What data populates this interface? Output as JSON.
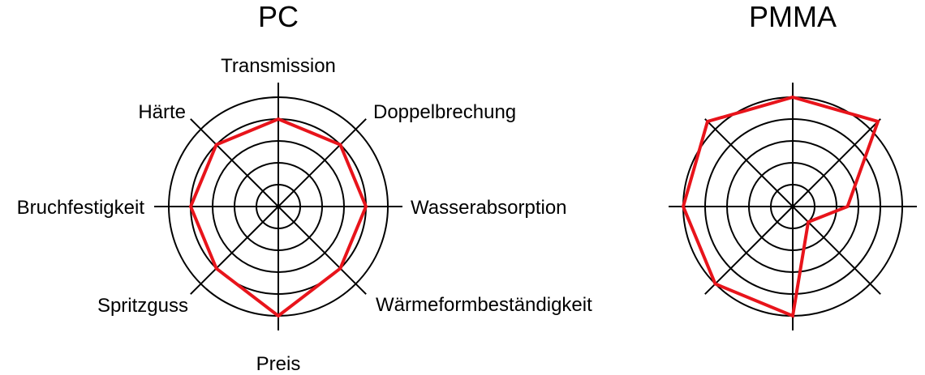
{
  "chart_data": [
    {
      "type": "radar",
      "title": "PC",
      "axes": [
        "Transmission",
        "Doppelbrechung",
        "Wasserabsorption",
        "Wärmeformbeständigkeit",
        "Preis",
        "Spritzguss",
        "Bruchfestigkeit",
        "Härte"
      ],
      "show_axis_labels": true,
      "rings": 5,
      "range": [
        0,
        5
      ],
      "line_color": "#e8141b",
      "values": [
        4,
        4,
        4,
        4,
        5,
        4,
        4,
        4
      ]
    },
    {
      "type": "radar",
      "title": "PMMA",
      "axes": [
        "Transmission",
        "Doppelbrechung",
        "Wasserabsorption",
        "Wärmeformbeständigkeit",
        "Preis",
        "Spritzguss",
        "Bruchfestigkeit",
        "Härte"
      ],
      "show_axis_labels": false,
      "rings": 5,
      "range": [
        0,
        5
      ],
      "line_color": "#e8141b",
      "values": [
        5,
        5.5,
        2.5,
        1,
        5,
        5,
        5,
        5.5
      ]
    }
  ]
}
